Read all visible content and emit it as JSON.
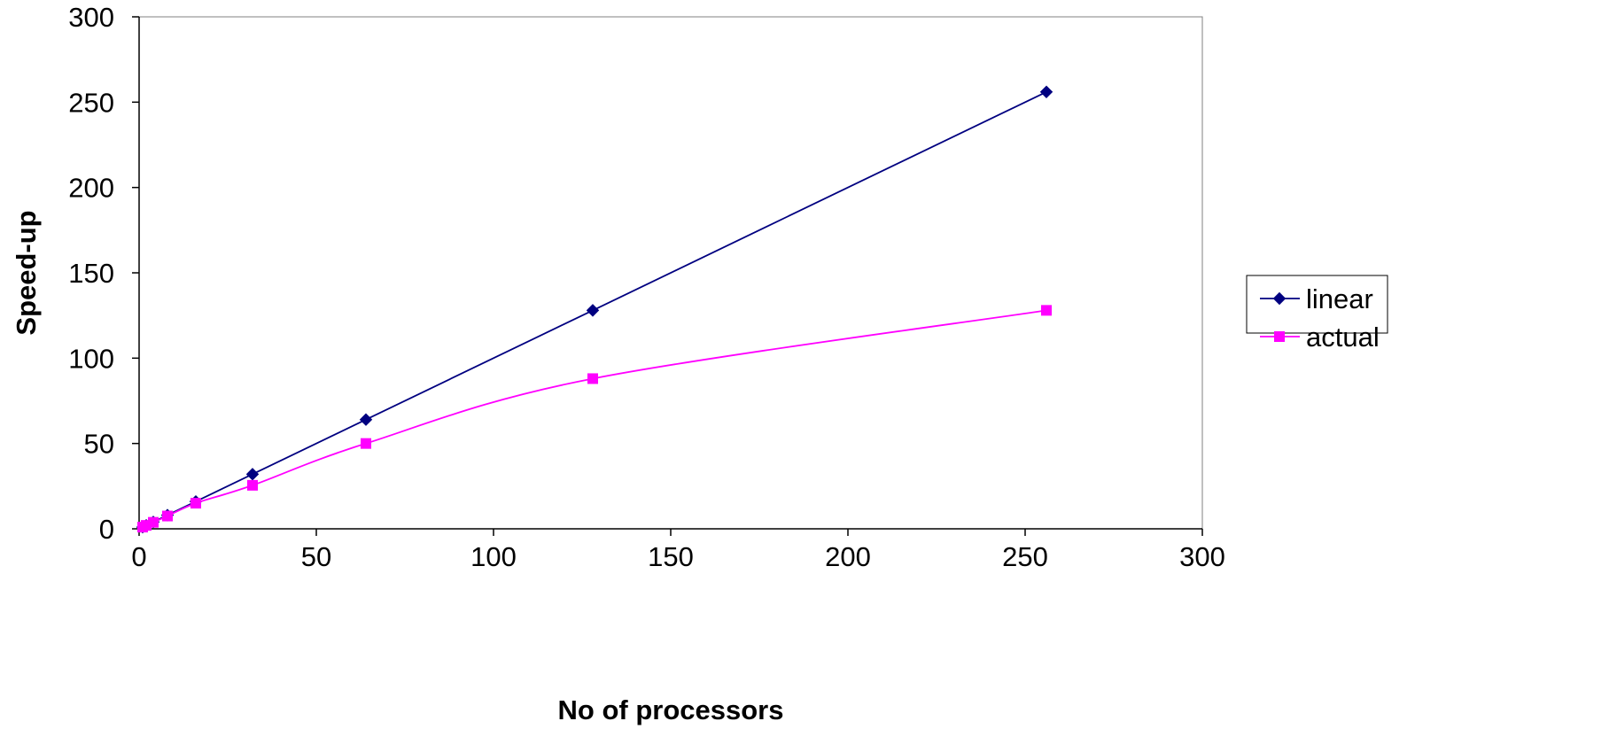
{
  "chart_data": {
    "type": "line",
    "title": "",
    "xlabel": "No of processors",
    "ylabel": "Speed-up",
    "xlim": [
      0,
      300
    ],
    "ylim": [
      0,
      300
    ],
    "x_ticks": [
      0,
      50,
      100,
      150,
      200,
      250,
      300
    ],
    "y_ticks": [
      0,
      50,
      100,
      150,
      200,
      250,
      300
    ],
    "grid": false,
    "legend_position": "right",
    "series": [
      {
        "name": "linear",
        "color": "#000080",
        "marker": "diamond",
        "smooth": false,
        "x": [
          1,
          2,
          4,
          8,
          16,
          32,
          64,
          128,
          256
        ],
        "y": [
          1,
          2,
          4,
          8,
          16,
          32,
          64,
          128,
          256
        ]
      },
      {
        "name": "actual",
        "color": "#FF00FF",
        "marker": "square",
        "smooth": true,
        "x": [
          1,
          2,
          4,
          8,
          16,
          32,
          64,
          128,
          256
        ],
        "y": [
          1,
          2,
          3.8,
          7.5,
          15,
          25.5,
          50,
          88,
          128
        ]
      }
    ]
  }
}
